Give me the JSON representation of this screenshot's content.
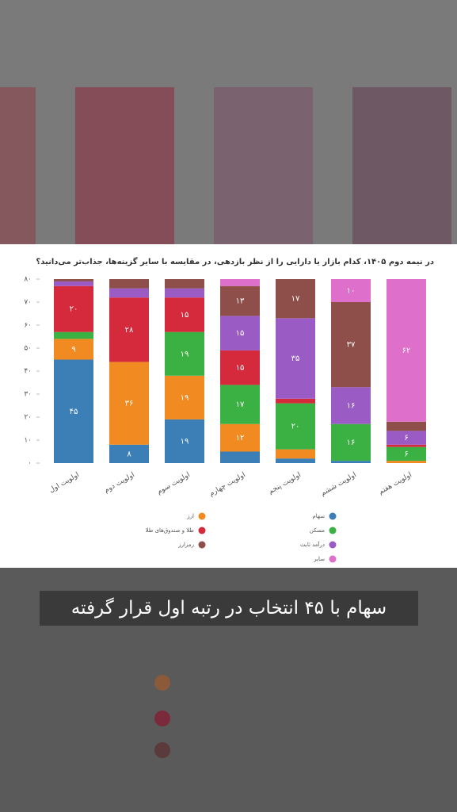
{
  "chart_data": {
    "type": "stacked_bar",
    "title": "در نیمه دوم ۱۴۰۵، کدام بازار یا دارایی را از نظر بازدهی، در مقایسه با سایر گزینه‌ها، جذاب‌تر می‌دانید؟",
    "categories": [
      "اولویت اول",
      "اولویت دوم",
      "اولویت سوم",
      "اولویت چهارم",
      "اولویت پنجم",
      "اولویت ششم",
      "اولویت هفتم"
    ],
    "ylim": [
      0,
      80
    ],
    "yticks": [
      {
        "value": 0,
        "label": "۰"
      },
      {
        "value": 10,
        "label": "۱۰"
      },
      {
        "value": 20,
        "label": "۲۰"
      },
      {
        "value": 30,
        "label": "۳۰"
      },
      {
        "value": 40,
        "label": "۴۰"
      },
      {
        "value": 50,
        "label": "۵۰"
      },
      {
        "value": 60,
        "label": "۶۰"
      },
      {
        "value": 70,
        "label": "۷۰"
      },
      {
        "value": 80,
        "label": "۸۰"
      }
    ],
    "series": [
      {
        "name": "سهام",
        "color": "#3b7fb6",
        "values": [
          45,
          8,
          19,
          5,
          2,
          1,
          0
        ],
        "value_labels": [
          "۴۵",
          "۸",
          "۱۹",
          null,
          null,
          null,
          null
        ]
      },
      {
        "name": "ارز",
        "color": "#f28a22",
        "values": [
          9,
          36,
          19,
          12,
          4,
          0,
          1
        ],
        "value_labels": [
          "۹",
          "۳۶",
          "۱۹",
          "۱۲",
          null,
          null,
          null
        ]
      },
      {
        "name": "مسکن",
        "color": "#3bb143",
        "values": [
          3,
          0,
          19,
          17,
          20,
          16,
          6
        ],
        "value_labels": [
          null,
          null,
          "۱۹",
          "۱۷",
          "۲۰",
          "۱۶",
          "۶"
        ]
      },
      {
        "name": "طلا و صندوق‌های طلا",
        "color": "#d42a3c",
        "values": [
          20,
          28,
          15,
          15,
          2,
          0,
          1
        ],
        "value_labels": [
          "۲۰",
          "۲۸",
          "۱۵",
          "۱۵",
          null,
          null,
          null
        ]
      },
      {
        "name": "درآمد ثابت",
        "color": "#9b5bc4",
        "values": [
          2,
          4,
          4,
          15,
          35,
          16,
          6
        ],
        "value_labels": [
          null,
          null,
          null,
          "۱۵",
          "۳۵",
          "۱۶",
          "۶"
        ]
      },
      {
        "name": "رمزارز",
        "color": "#8e4f4a",
        "values": [
          1,
          4,
          4,
          13,
          17,
          37,
          4
        ],
        "value_labels": [
          null,
          null,
          null,
          "۱۳",
          "۱۷",
          "۳۷",
          null
        ]
      },
      {
        "name": "سایر",
        "color": "#de6fcb",
        "values": [
          0,
          0,
          0,
          3,
          0,
          10,
          62
        ],
        "value_labels": [
          null,
          null,
          null,
          null,
          null,
          "۱۰",
          "۶۲"
        ]
      }
    ]
  },
  "caption": "سهام با ۴۵ انتخاب در رتبه اول قرار گرفته"
}
